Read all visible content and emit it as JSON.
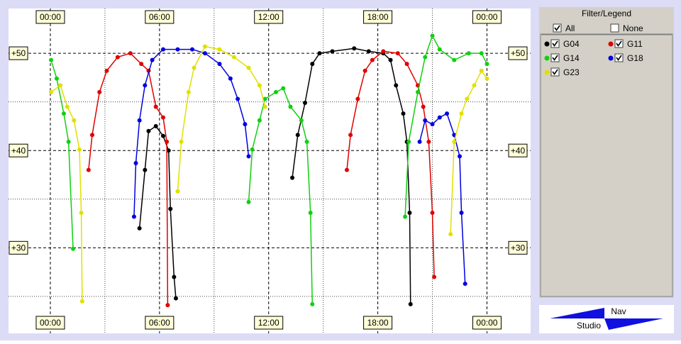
{
  "chart_data": {
    "type": "line",
    "xlim": [
      -2.3,
      26.4
    ],
    "ylim": [
      21.2,
      54.6
    ],
    "xticks": [
      {
        "value": 0,
        "label": "00:00"
      },
      {
        "value": 6,
        "label": "06:00"
      },
      {
        "value": 12,
        "label": "12:00"
      },
      {
        "value": 18,
        "label": "18:00"
      },
      {
        "value": 24,
        "label": "00:00"
      }
    ],
    "x_minor_ticks": [
      3,
      9,
      15,
      21
    ],
    "yticks": [
      {
        "value": 30,
        "label": "+30"
      },
      {
        "value": 40,
        "label": "+40"
      },
      {
        "value": 50,
        "label": "+50"
      }
    ],
    "y_minor_ticks": [
      25,
      35,
      45
    ],
    "grid": true,
    "series": [
      {
        "name": "G04",
        "color": "#000000",
        "x": [
          4.9,
          5.2,
          5.4,
          5.8,
          6.2,
          6.5,
          6.6,
          6.8,
          6.9,
          null,
          13.3,
          13.6,
          14.0,
          14.4,
          14.8,
          15.5,
          16.7,
          17.5,
          18.3,
          18.7,
          19.0,
          19.4,
          19.6,
          19.75,
          19.8
        ],
        "values": [
          32,
          38,
          42,
          42.5,
          41.5,
          40,
          34,
          27,
          24.8,
          null,
          37.2,
          41.6,
          44.9,
          48.9,
          50,
          50.2,
          50.5,
          50.2,
          50,
          49.3,
          46.7,
          43.8,
          40.9,
          33.6,
          24.2
        ]
      },
      {
        "name": "G11",
        "color": "#e00000",
        "x": [
          2.1,
          2.3,
          2.7,
          3.1,
          3.7,
          4.4,
          5.0,
          5.4,
          5.8,
          6.2,
          6.4,
          6.45,
          null,
          16.3,
          16.5,
          16.9,
          17.3,
          17.7,
          18.3,
          19.1,
          19.6,
          20.2,
          20.5,
          20.8,
          21.0,
          21.1
        ],
        "values": [
          38,
          41.6,
          46,
          48.2,
          49.6,
          50,
          48.9,
          48.2,
          44.5,
          43.4,
          40.9,
          24.1,
          null,
          38,
          41.6,
          45.3,
          48.2,
          49.3,
          50.2,
          50,
          48.9,
          46.7,
          44.5,
          40.9,
          33.6,
          27
        ]
      },
      {
        "name": "G14",
        "color": "#10d010",
        "x": [
          0.04,
          0.35,
          0.74,
          1.0,
          1.25,
          null,
          10.9,
          11.1,
          11.5,
          11.8,
          12.4,
          12.8,
          13.2,
          13.8,
          14.1,
          14.3,
          14.4,
          null,
          19.5,
          19.7,
          20.2,
          20.6,
          21.0,
          21.4,
          22.2,
          23.0,
          23.7,
          24.0
        ],
        "values": [
          49.3,
          47.4,
          43.8,
          40.9,
          29.9,
          null,
          34.7,
          40.1,
          43.1,
          45.3,
          46,
          46.4,
          44.5,
          43.1,
          40.9,
          33.6,
          24.2,
          null,
          33.2,
          40.9,
          46,
          49.6,
          51.8,
          50.4,
          49.3,
          50,
          50,
          48.9
        ]
      },
      {
        "name": "G18",
        "color": "#0000e0",
        "x": [
          4.6,
          4.7,
          4.9,
          5.2,
          5.6,
          6.2,
          7.0,
          7.8,
          8.5,
          9.3,
          9.9,
          10.3,
          10.7,
          10.9,
          null,
          20.3,
          20.6,
          21.0,
          21.4,
          21.8,
          22.2,
          22.5,
          22.6,
          22.8
        ],
        "values": [
          33.2,
          38.7,
          43.1,
          46.7,
          49.3,
          50.4,
          50.4,
          50.4,
          50,
          48.9,
          47.4,
          45.3,
          42.7,
          39.4,
          null,
          40.9,
          43.1,
          42.7,
          43.4,
          43.8,
          41.6,
          39.4,
          33.6,
          26.3
        ]
      },
      {
        "name": "G23",
        "color": "#e0e000",
        "x": [
          0.04,
          0.55,
          0.93,
          1.3,
          1.6,
          1.7,
          1.75,
          null,
          7.0,
          7.2,
          7.6,
          7.9,
          8.5,
          9.3,
          10.1,
          10.9,
          11.5,
          11.8,
          null,
          22.0,
          22.2,
          22.6,
          22.9,
          23.3,
          23.7,
          24.0
        ],
        "values": [
          46,
          46.7,
          44.5,
          43.1,
          40.1,
          33.6,
          24.5,
          null,
          35.8,
          40.9,
          46,
          48.5,
          50.7,
          50.4,
          49.6,
          48.5,
          46.7,
          44.5,
          null,
          31.4,
          40.9,
          43.8,
          45.3,
          46.7,
          48.2,
          47.4
        ]
      }
    ]
  },
  "legend_panel": {
    "title": "Filter/Legend",
    "all": "All",
    "all_checked": true,
    "none": "None",
    "none_checked": false
  },
  "logo": {
    "top": "Nav",
    "bottom": "Studio"
  }
}
